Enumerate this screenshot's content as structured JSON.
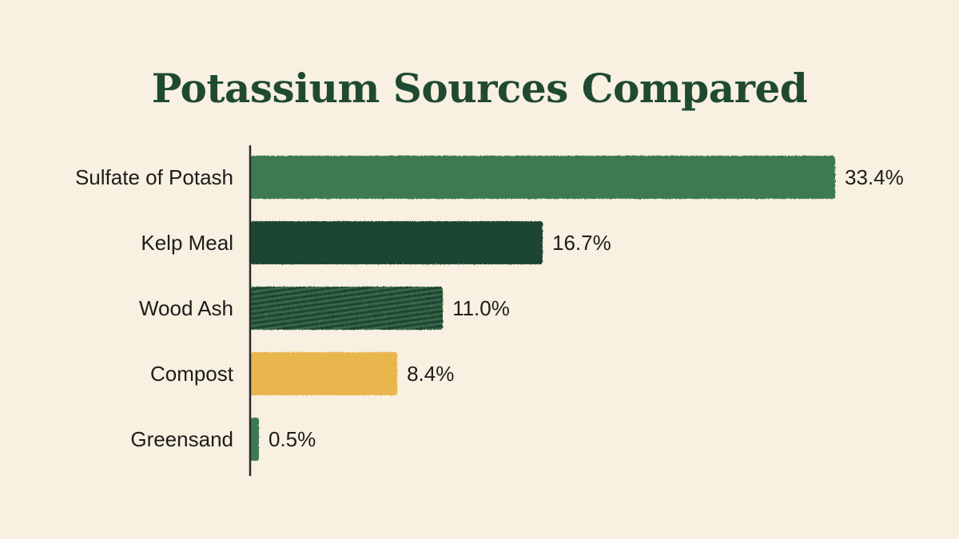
{
  "chart_data": {
    "type": "bar",
    "orientation": "horizontal",
    "title": "Potassium Sources Compared",
    "xlabel": "",
    "ylabel": "",
    "xlim": [
      0,
      33.4
    ],
    "grid": false,
    "categories": [
      "Sulfate of Potash",
      "Kelp Meal",
      "Wood Ash",
      "Compost",
      "Greensand"
    ],
    "values": [
      33.4,
      16.7,
      11.0,
      8.4,
      0.5
    ],
    "value_labels": [
      "33.4%",
      "16.7%",
      "11.0%",
      "8.4%",
      "0.5%"
    ],
    "colors": [
      "#3c7a52",
      "#1d4530",
      "#27503a",
      "#e8b64e",
      "#3c7a52"
    ]
  },
  "colors": {
    "background": "#f8f0e0",
    "title": "#1f4a31",
    "axis": "#2b2b2b",
    "text": "#1d1d1b"
  }
}
